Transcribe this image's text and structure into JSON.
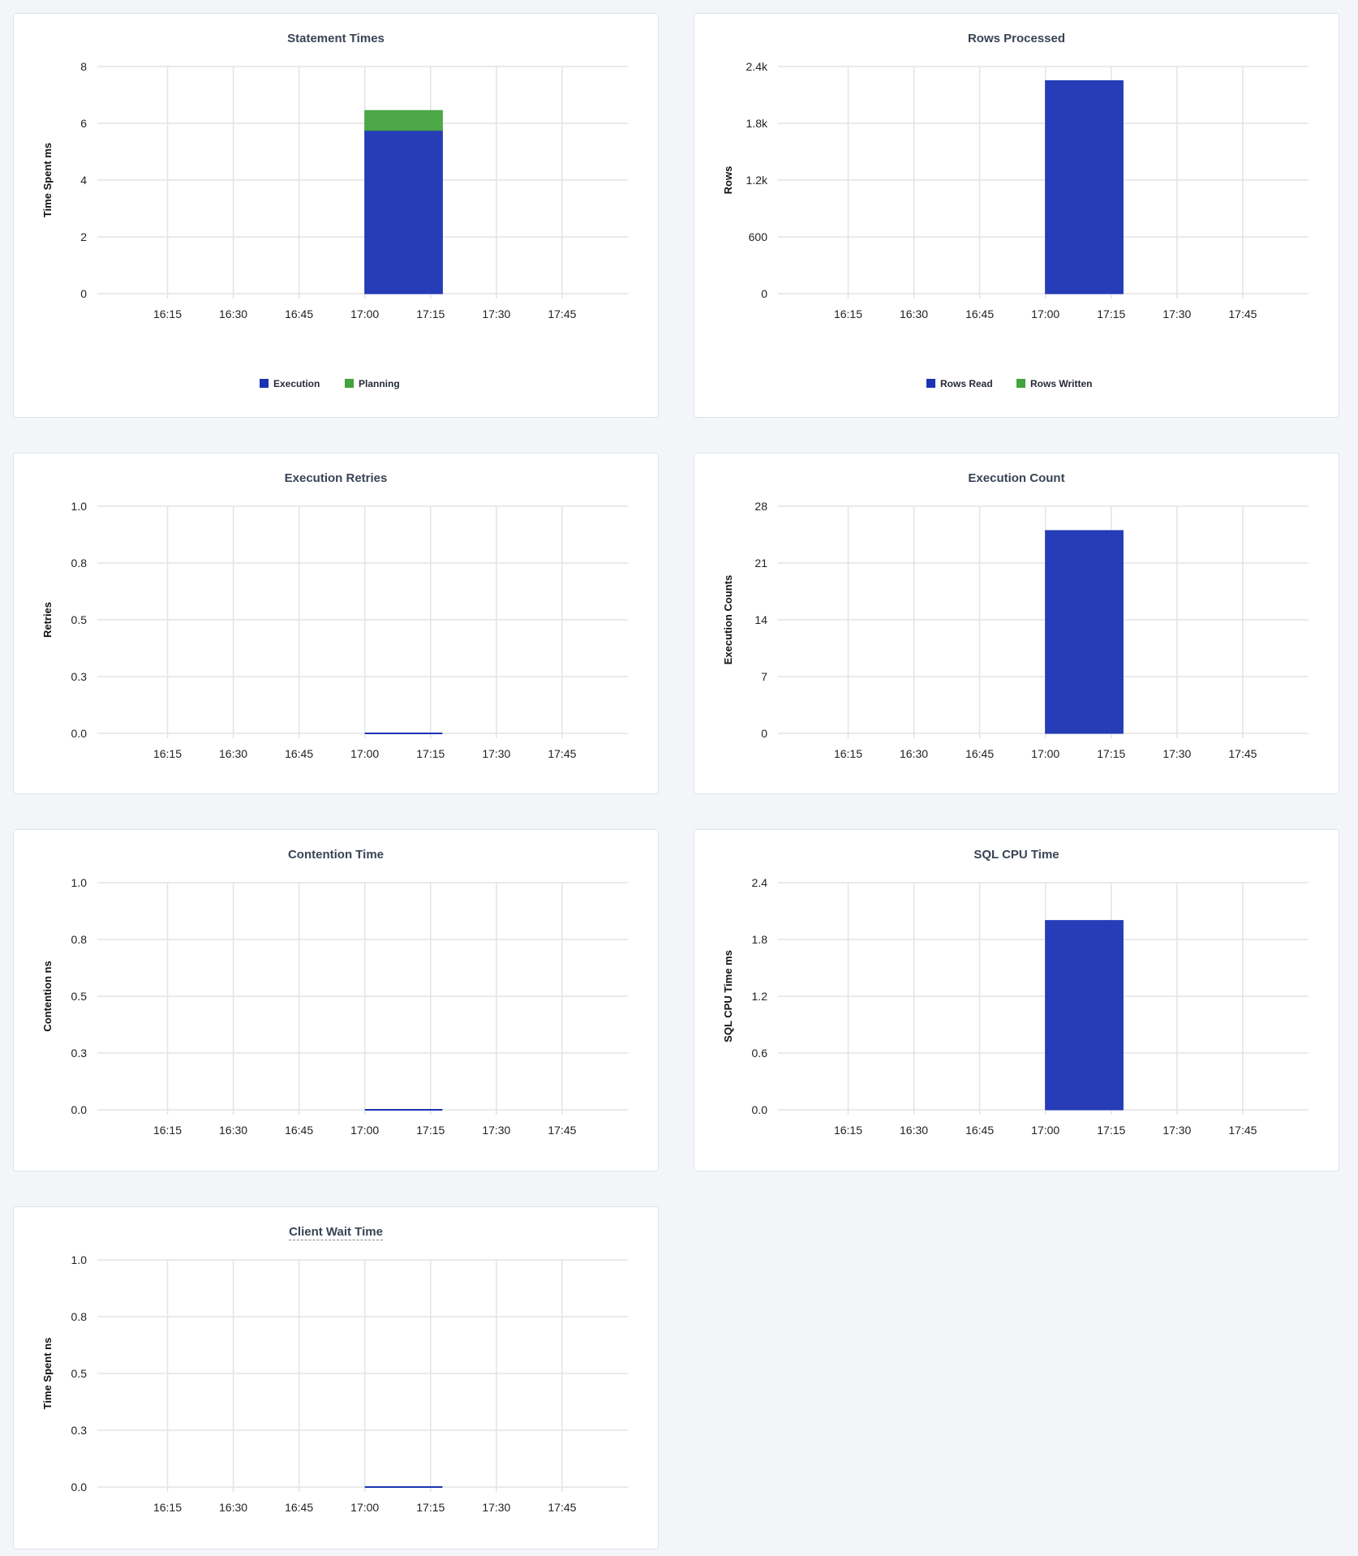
{
  "colors": {
    "primary": "#1a33b3",
    "secondary": "#43a33d",
    "grid": "#e3e3e3",
    "title": "#394455"
  },
  "chart_data": [
    {
      "id": "statement-times",
      "type": "bar",
      "stacked": true,
      "title": "Statement Times",
      "ylabel": "Time Spent ms",
      "x_ticks": [
        "16:15",
        "16:30",
        "16:45",
        "17:00",
        "17:15",
        "17:30",
        "17:45"
      ],
      "xlim": [
        "15:59",
        "18:00"
      ],
      "y_ticks": [
        "0",
        "2",
        "4",
        "6",
        "8"
      ],
      "ylim": [
        0,
        8
      ],
      "grid": true,
      "legend": "bottom",
      "series": [
        {
          "name": "Execution",
          "color": "#1a33b3",
          "x": [
            "17:00"
          ],
          "values": [
            5.75
          ]
        },
        {
          "name": "Planning",
          "color": "#43a33d",
          "x": [
            "17:00"
          ],
          "values": [
            0.7
          ]
        }
      ]
    },
    {
      "id": "rows-processed",
      "type": "bar",
      "stacked": true,
      "title": "Rows Processed",
      "ylabel": "Rows",
      "x_ticks": [
        "16:15",
        "16:30",
        "16:45",
        "17:00",
        "17:15",
        "17:30",
        "17:45"
      ],
      "xlim": [
        "15:59",
        "18:00"
      ],
      "y_ticks": [
        "0",
        "600",
        "1.2k",
        "1.8k",
        "2.4k"
      ],
      "ylim": [
        0,
        2400
      ],
      "grid": true,
      "legend": "bottom",
      "series": [
        {
          "name": "Rows Read",
          "color": "#1a33b3",
          "x": [
            "17:00"
          ],
          "values": [
            2250
          ]
        },
        {
          "name": "Rows Written",
          "color": "#43a33d",
          "x": [
            "17:00"
          ],
          "values": [
            0
          ]
        }
      ]
    },
    {
      "id": "execution-retries",
      "type": "bar",
      "title": "Execution Retries",
      "ylabel": "Retries",
      "x_ticks": [
        "16:15",
        "16:30",
        "16:45",
        "17:00",
        "17:15",
        "17:30",
        "17:45"
      ],
      "xlim": [
        "15:59",
        "18:00"
      ],
      "y_ticks": [
        "0.0",
        "0.3",
        "0.5",
        "0.8",
        "1.0"
      ],
      "ylim": [
        0,
        1
      ],
      "grid": true,
      "series": [
        {
          "color": "#1a33b3",
          "x": [
            "17:00"
          ],
          "values": [
            0
          ]
        }
      ]
    },
    {
      "id": "execution-count",
      "type": "bar",
      "title": "Execution Count",
      "ylabel": "Execution Counts",
      "x_ticks": [
        "16:15",
        "16:30",
        "16:45",
        "17:00",
        "17:15",
        "17:30",
        "17:45"
      ],
      "xlim": [
        "15:59",
        "18:00"
      ],
      "y_ticks": [
        "0",
        "7",
        "14",
        "21",
        "28"
      ],
      "ylim": [
        0,
        28
      ],
      "grid": true,
      "series": [
        {
          "color": "#1a33b3",
          "x": [
            "17:00"
          ],
          "values": [
            25
          ]
        }
      ]
    },
    {
      "id": "contention-time",
      "type": "bar",
      "title": "Contention Time",
      "ylabel": "Contention ns",
      "x_ticks": [
        "16:15",
        "16:30",
        "16:45",
        "17:00",
        "17:15",
        "17:30",
        "17:45"
      ],
      "xlim": [
        "15:59",
        "18:00"
      ],
      "y_ticks": [
        "0.0",
        "0.3",
        "0.5",
        "0.8",
        "1.0"
      ],
      "ylim": [
        0,
        1
      ],
      "grid": true,
      "series": [
        {
          "color": "#1a33b3",
          "x": [
            "17:00"
          ],
          "values": [
            0
          ]
        }
      ]
    },
    {
      "id": "sql-cpu-time",
      "type": "bar",
      "title": "SQL CPU Time",
      "ylabel": "SQL CPU Time ms",
      "x_ticks": [
        "16:15",
        "16:30",
        "16:45",
        "17:00",
        "17:15",
        "17:30",
        "17:45"
      ],
      "xlim": [
        "15:59",
        "18:00"
      ],
      "y_ticks": [
        "0.0",
        "0.6",
        "1.2",
        "1.8",
        "2.4"
      ],
      "ylim": [
        0,
        2.4
      ],
      "grid": true,
      "series": [
        {
          "color": "#1a33b3",
          "x": [
            "17:00"
          ],
          "values": [
            2.0
          ]
        }
      ]
    },
    {
      "id": "client-wait-time",
      "type": "bar",
      "title": "Client Wait Time",
      "title_has_tooltip": true,
      "ylabel": "Time Spent ns",
      "x_ticks": [
        "16:15",
        "16:30",
        "16:45",
        "17:00",
        "17:15",
        "17:30",
        "17:45"
      ],
      "xlim": [
        "15:59",
        "18:00"
      ],
      "y_ticks": [
        "0.0",
        "0.3",
        "0.5",
        "0.8",
        "1.0"
      ],
      "ylim": [
        0,
        1
      ],
      "grid": true,
      "series": [
        {
          "color": "#1a33b3",
          "x": [
            "17:00"
          ],
          "values": [
            0
          ]
        }
      ]
    }
  ]
}
